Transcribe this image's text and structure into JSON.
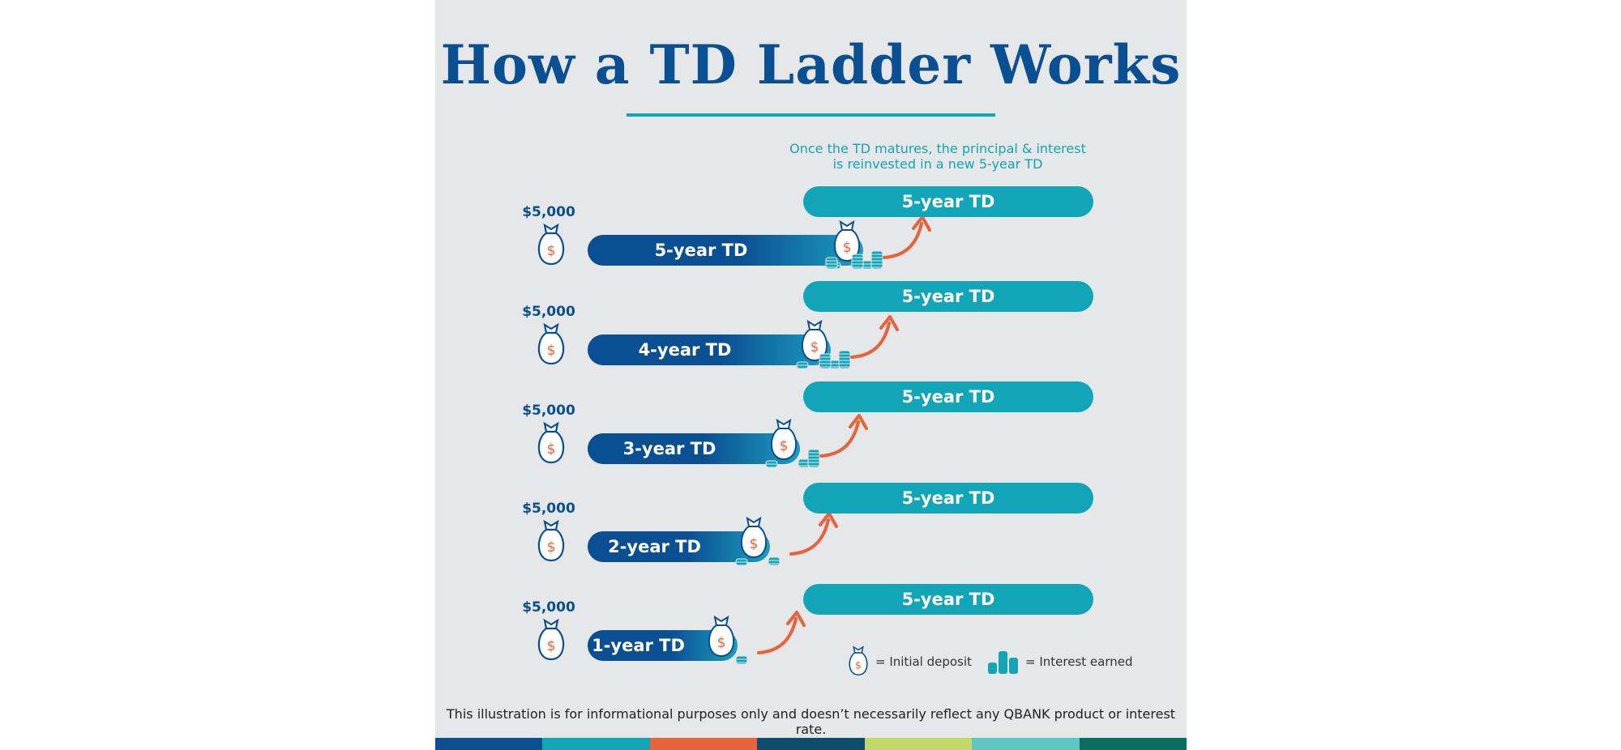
{
  "title": "How a TD Ladder Works",
  "note": "Once the TD matures, the principal & interest is reinvested in a new 5-year TD",
  "rows": [
    {
      "deposit": "$5,000",
      "term": "5-year TD",
      "reinvest": "5-year TD",
      "term_years": 5
    },
    {
      "deposit": "$5,000",
      "term": "4-year TD",
      "reinvest": "5-year TD",
      "term_years": 4
    },
    {
      "deposit": "$5,000",
      "term": "3-year TD",
      "reinvest": "5-year TD",
      "term_years": 3
    },
    {
      "deposit": "$5,000",
      "term": "2-year TD",
      "reinvest": "5-year TD",
      "term_years": 2
    },
    {
      "deposit": "$5,000",
      "term": "1-year TD",
      "reinvest": "5-year TD",
      "term_years": 1
    }
  ],
  "legend": {
    "deposit_label": "= Initial deposit",
    "interest_label": "= Interest earned"
  },
  "disclaimer": "This illustration is for informational purposes only and doesn’t necessarily reflect any QBANK product or interest rate.",
  "icons": {
    "deposit": "money-bag-icon",
    "interest": "coin-stack-icon",
    "reinvest": "curved-arrow-icon"
  },
  "colors": {
    "navy": "#0b4f93",
    "teal": "#12a5b8",
    "orange": "#e8623b",
    "background": "#e6e7e9",
    "stripe": [
      "#0b4f93",
      "#12a5b8",
      "#e8623b",
      "#0e4d6b",
      "#c4d86a",
      "#5ec6c3",
      "#0a6e5e"
    ]
  }
}
